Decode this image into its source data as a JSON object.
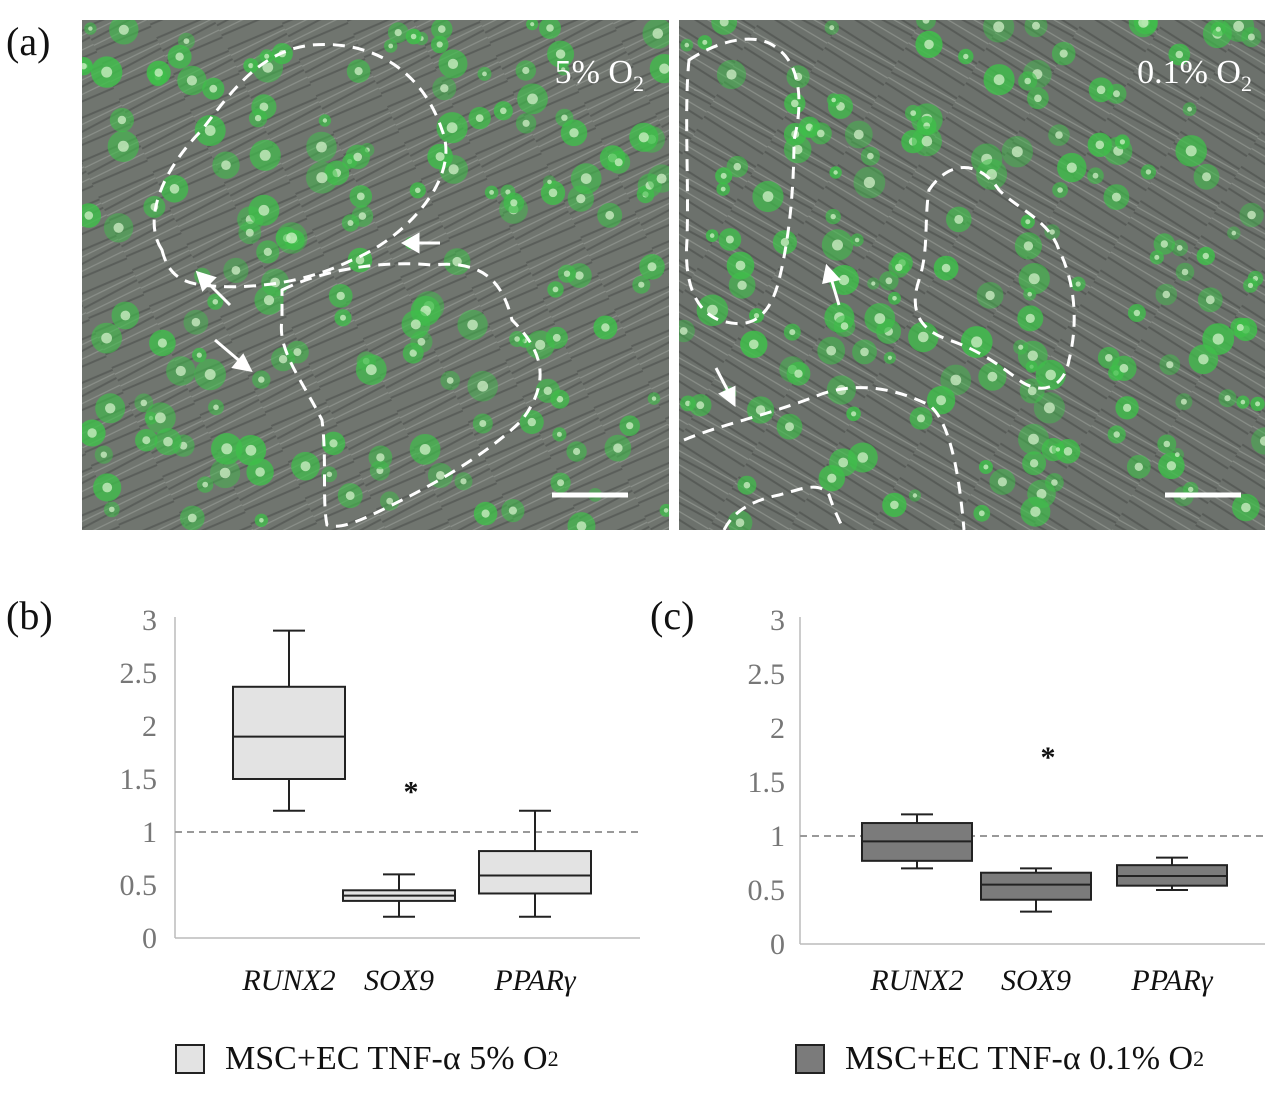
{
  "panels": {
    "a": "(a)",
    "b": "(b)",
    "c": "(c)"
  },
  "micrographs": [
    {
      "condition_main": "5% O",
      "condition_sub": "2"
    },
    {
      "condition_main": "0.1% O",
      "condition_sub": "2"
    }
  ],
  "legend": [
    {
      "main": "MSC+EC TNF-α 5% O",
      "sub": "2",
      "color": "#e3e3e3"
    },
    {
      "main": "MSC+EC TNF-α 0.1% O",
      "sub": "2",
      "color": "#7b7b7b"
    }
  ],
  "colors": {
    "fluorescence": "#3fbf4a",
    "reference_line": "#999999"
  },
  "chart_data": [
    {
      "type": "box",
      "panel": "(b)",
      "categories": [
        "RUNX2",
        "SOX9",
        "PPARγ"
      ],
      "ylim": [
        0,
        3
      ],
      "yticks": [
        "0",
        "0.5",
        "1",
        "1.5",
        "2",
        "2.5",
        "3"
      ],
      "reference_line": 1,
      "box_color": "#e3e3e3",
      "boxes": [
        {
          "min": 1.2,
          "q1": 1.5,
          "median": 1.9,
          "q3": 2.37,
          "max": 2.9
        },
        {
          "min": 0.2,
          "q1": 0.35,
          "median": 0.4,
          "q3": 0.45,
          "max": 0.6
        },
        {
          "min": 0.2,
          "q1": 0.42,
          "median": 0.59,
          "q3": 0.82,
          "max": 1.2
        }
      ],
      "annotations": [
        {
          "text": "*",
          "category": "SOX9",
          "y": 1.4
        }
      ]
    },
    {
      "type": "box",
      "panel": "(c)",
      "categories": [
        "RUNX2",
        "SOX9",
        "PPARγ"
      ],
      "ylim": [
        0,
        3
      ],
      "yticks": [
        "0",
        "0.5",
        "1",
        "1.5",
        "2",
        "2.5",
        "3"
      ],
      "reference_line": 1,
      "box_color": "#7b7b7b",
      "boxes": [
        {
          "min": 0.7,
          "q1": 0.77,
          "median": 0.95,
          "q3": 1.12,
          "max": 1.2
        },
        {
          "min": 0.3,
          "q1": 0.41,
          "median": 0.55,
          "q3": 0.66,
          "max": 0.7
        },
        {
          "min": 0.5,
          "q1": 0.54,
          "median": 0.63,
          "q3": 0.73,
          "max": 0.8
        }
      ],
      "annotations": [
        {
          "text": "*",
          "category": "SOX9",
          "y": 1.75
        }
      ]
    }
  ]
}
